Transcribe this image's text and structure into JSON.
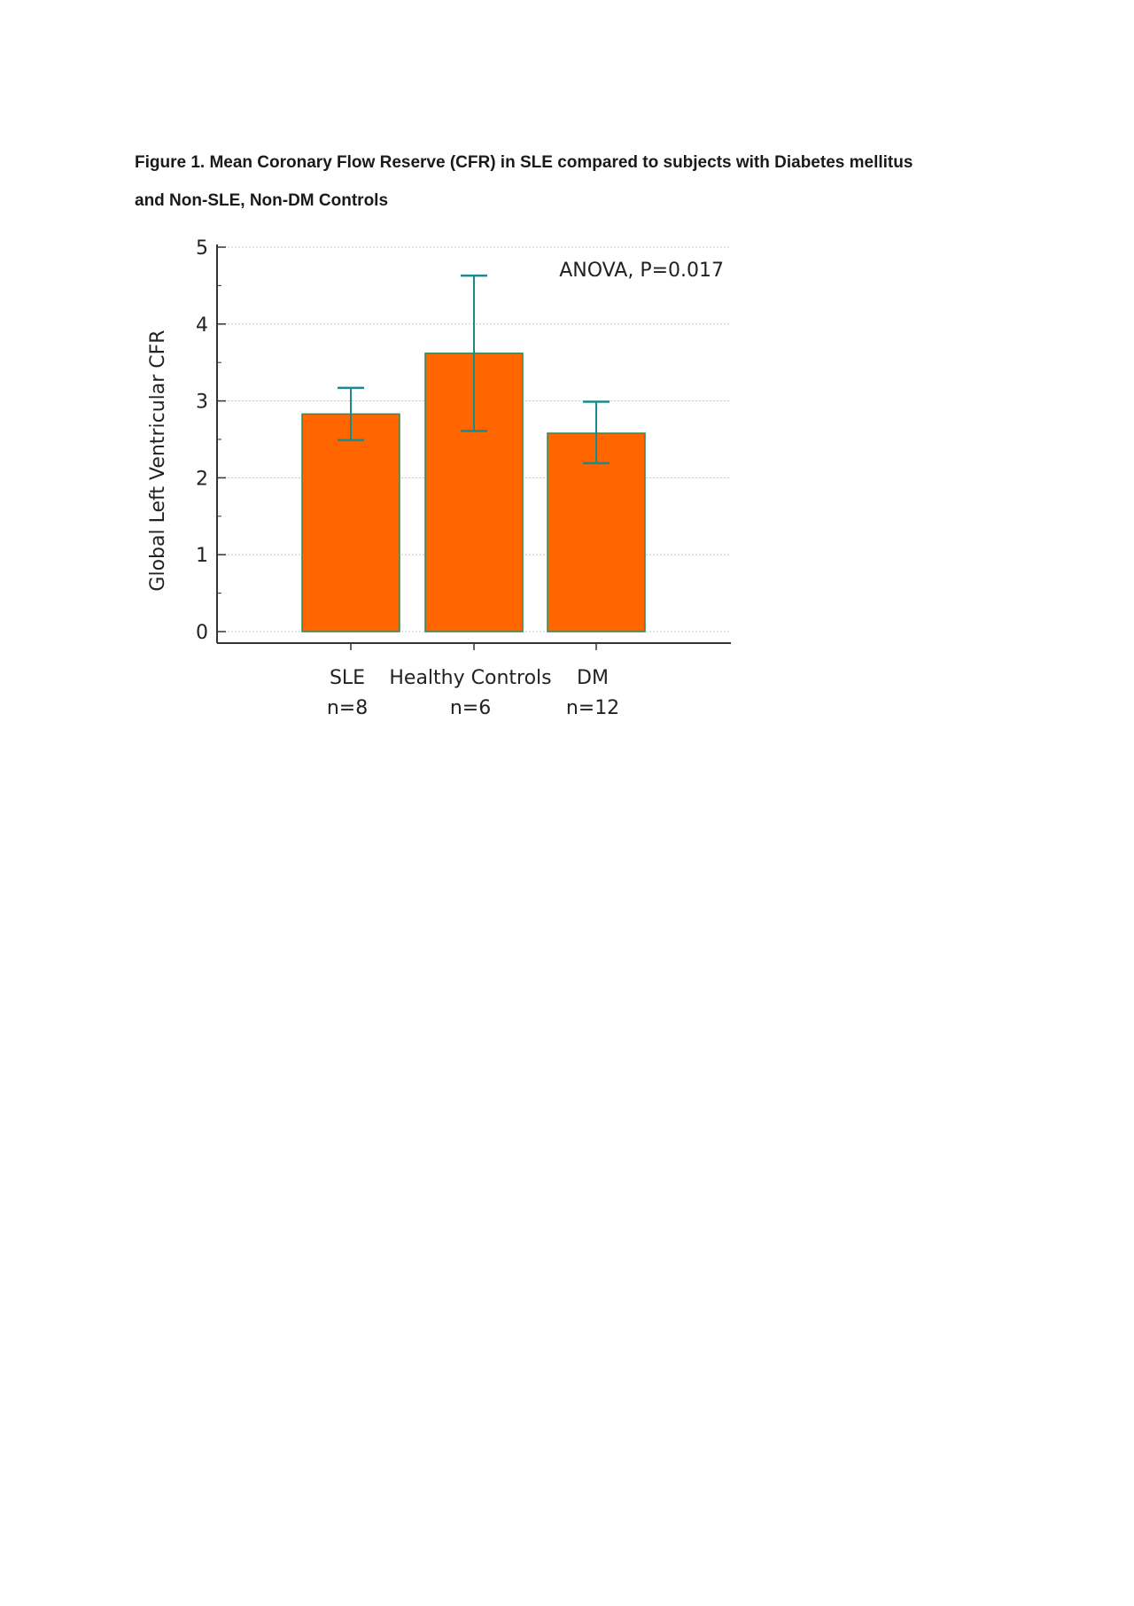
{
  "figure": {
    "caption_line1": "Figure 1. Mean Coronary Flow Reserve (CFR) in SLE compared to subjects with Diabetes mellitus",
    "caption_line2": "and Non-SLE, Non-DM Controls"
  },
  "chart_data": {
    "type": "bar",
    "title": "",
    "xlabel": "",
    "ylabel": "Global Left Ventricular CFR",
    "ylim": [
      0,
      5
    ],
    "yticks": [
      "0",
      "1",
      "2",
      "3",
      "4",
      "5"
    ],
    "categories": [
      "SLE",
      "Healthy Controls",
      "DM"
    ],
    "category_sublabels": [
      "n=8",
      "n=6",
      "n=12"
    ],
    "values": [
      2.83,
      3.62,
      2.58
    ],
    "error_low": [
      2.49,
      2.61,
      2.19
    ],
    "error_high": [
      3.17,
      4.63,
      2.99
    ],
    "annotation": "ANOVA, P=0.017",
    "grid": "horizontal, dotted",
    "legend": "none",
    "colors": {
      "bar_fill": "#ff6600",
      "bar_stroke": "#2a8a5a",
      "error_bar": "#1a8a8a",
      "axis": "#333333",
      "grid": "#c8c8c8"
    }
  }
}
